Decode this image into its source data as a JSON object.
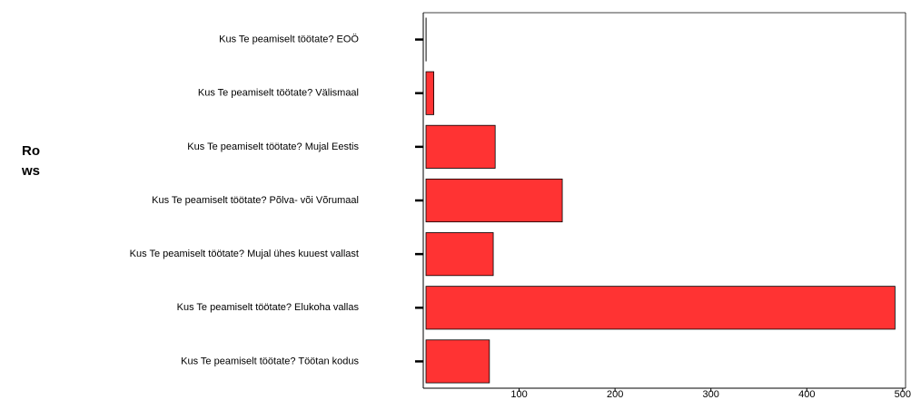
{
  "chart_data": {
    "type": "barh",
    "y_label": "Rows",
    "categories": [
      "Kus Te peamiselt töötate? EOÖ",
      "Kus Te peamiselt töötate? Välismaal",
      "Kus Te peamiselt töötate? Mujal Eestis",
      "Kus Te peamiselt töötate? Põlva- või Võrumaal",
      "Kus Te peamiselt töötate? Mujal ühes kuuest vallast",
      "Kus Te peamiselt töötate? Elukoha vallas",
      "Kus Te peamiselt töötate? Töötan kodus"
    ],
    "values": [
      3,
      11,
      75,
      145,
      73,
      492,
      69
    ],
    "color": "#ff3333",
    "xlim": [
      0,
      503
    ],
    "xticks": [
      100,
      200,
      300,
      400,
      500
    ],
    "grid": false
  }
}
